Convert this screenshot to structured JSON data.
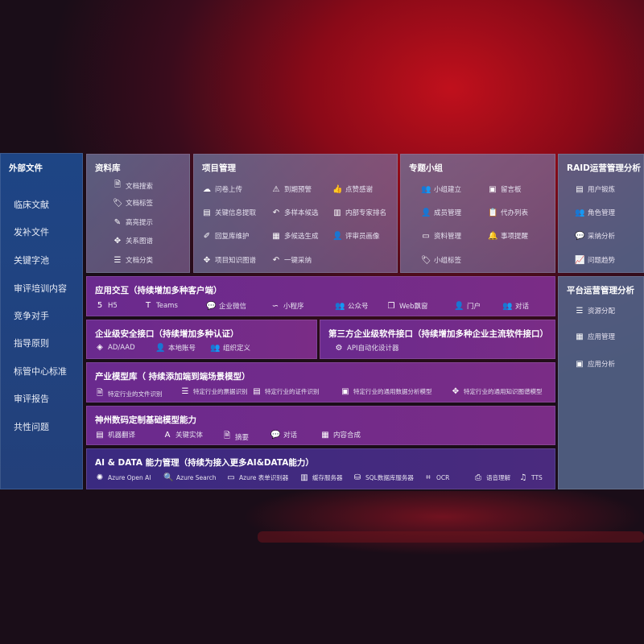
{
  "sidebar": {
    "title": "外部文件",
    "items": [
      "临床文献",
      "发补文件",
      "关键字池",
      "审评培训内容",
      "竞争对手",
      "指导原则",
      "标管中心标准",
      "审评报告",
      "共性问题"
    ]
  },
  "library": {
    "title": "资料库",
    "items": [
      {
        "icon": "document-search-icon",
        "glyph": "🗎",
        "label": "文档搜索"
      },
      {
        "icon": "tag-icon",
        "glyph": "🏷",
        "label": "文档标签"
      },
      {
        "icon": "pen-icon",
        "glyph": "✎",
        "label": "高亮提示"
      },
      {
        "icon": "graph-icon",
        "glyph": "✥",
        "label": "关系图谱"
      },
      {
        "icon": "document-classify-icon",
        "glyph": "☰",
        "label": "文档分类"
      }
    ]
  },
  "project": {
    "title": "项目管理",
    "items": [
      {
        "icon": "cloud-upload-icon",
        "glyph": "☁",
        "label": "问卷上传"
      },
      {
        "icon": "alarm-icon",
        "glyph": "⚠",
        "label": "到期预警"
      },
      {
        "icon": "thumbs-up-icon",
        "glyph": "👍",
        "label": "点赞感谢"
      },
      {
        "icon": "card-icon",
        "glyph": "▤",
        "label": "关键信息提取"
      },
      {
        "icon": "reply-icon",
        "glyph": "↶",
        "label": "多样本候选"
      },
      {
        "icon": "ranking-icon",
        "glyph": "▥",
        "label": "内部专家排名"
      },
      {
        "icon": "edit-icon",
        "glyph": "✐",
        "label": "回复库维护"
      },
      {
        "icon": "puzzle-icon",
        "glyph": "▦",
        "label": "多候选生成"
      },
      {
        "icon": "user-icon",
        "glyph": "👤",
        "label": "评审员画像"
      },
      {
        "icon": "knowledge-graph-icon",
        "glyph": "✥",
        "label": "项目知识图谱"
      },
      {
        "icon": "reply-icon",
        "glyph": "↶",
        "label": "一键采纳"
      }
    ]
  },
  "group": {
    "title": "专题小组",
    "items": [
      {
        "icon": "group-icon",
        "glyph": "👥",
        "label": "小组建立"
      },
      {
        "icon": "bbs-icon",
        "glyph": "▣",
        "label": "留言板"
      },
      {
        "icon": "add-user-icon",
        "glyph": "👤",
        "label": "成员管理"
      },
      {
        "icon": "clipboard-icon",
        "glyph": "📋",
        "label": "代办列表"
      },
      {
        "icon": "folder-icon",
        "glyph": "▭",
        "label": "资料管理"
      },
      {
        "icon": "bell-icon",
        "glyph": "🔔",
        "label": "事项提醒"
      },
      {
        "icon": "tag-icon",
        "glyph": "🏷",
        "label": "小组标签"
      }
    ]
  },
  "raid": {
    "title": "RAID运营管理分析",
    "items": [
      {
        "icon": "id-card-icon",
        "glyph": "▤",
        "label": "用户锻炼"
      },
      {
        "icon": "users-icon",
        "glyph": "👥",
        "label": "角色管理"
      },
      {
        "icon": "qa-icon",
        "glyph": "💬",
        "label": "采纳分析"
      },
      {
        "icon": "trend-icon",
        "glyph": "📈",
        "label": "问题趋势"
      }
    ]
  },
  "platform": {
    "title": "平台运营管理分析",
    "items": [
      {
        "icon": "list-icon",
        "glyph": "☰",
        "label": "资源分配"
      },
      {
        "icon": "apps-icon",
        "glyph": "▦",
        "label": "应用管理"
      },
      {
        "icon": "analysis-icon",
        "glyph": "▣",
        "label": "应用分析"
      }
    ]
  },
  "interaction": {
    "title": "应用交互（持续增加多种客户端）",
    "items": [
      {
        "icon": "html5-icon",
        "glyph": "5",
        "label": "H5"
      },
      {
        "icon": "teams-icon",
        "glyph": "T",
        "label": "Teams"
      },
      {
        "icon": "wecom-icon",
        "glyph": "💬",
        "label": "企业微信"
      },
      {
        "icon": "miniprogram-icon",
        "glyph": "∽",
        "label": "小程序"
      },
      {
        "icon": "official-account-icon",
        "glyph": "👥",
        "label": "公众号"
      },
      {
        "icon": "window-icon",
        "glyph": "❐",
        "label": "Web飘窗"
      },
      {
        "icon": "portal-icon",
        "glyph": "👤",
        "label": "门户"
      },
      {
        "icon": "chat-icon",
        "glyph": "👥",
        "label": "对话"
      }
    ]
  },
  "security": {
    "title": "企业级安全接口（持续增加多种认证）",
    "items": [
      {
        "icon": "ad-icon",
        "glyph": "◈",
        "label": "AD/AAD"
      },
      {
        "icon": "local-account-icon",
        "glyph": "👤",
        "label": "本地账号"
      },
      {
        "icon": "org-icon",
        "glyph": "👥",
        "label": "组织定义"
      }
    ]
  },
  "thirdparty": {
    "title": "第三方企业级软件接口（持续增加多种企业主流软件接口）",
    "items": [
      {
        "icon": "gear-icon",
        "glyph": "⚙",
        "label": "API自动化设计器"
      }
    ]
  },
  "industry": {
    "title": "产业模型库（ 持续添加端到端场景模型）",
    "items": [
      {
        "icon": "file-icon",
        "glyph": "🗎",
        "label": "特定行业的文件识别"
      },
      {
        "icon": "receipt-icon",
        "glyph": "☰",
        "label": "特定行业的票据识别"
      },
      {
        "icon": "id-card-icon",
        "glyph": "▤",
        "label": "特定行业的证件识别"
      },
      {
        "icon": "chart-icon",
        "glyph": "▣",
        "label": "特定行业的通用数据分析模型"
      },
      {
        "icon": "knowledge-graph-icon",
        "glyph": "✥",
        "label": "特定行业的通用知识图谱模型"
      }
    ]
  },
  "base": {
    "title": "神州数码定制基础模型能力",
    "items": [
      {
        "icon": "translate-icon",
        "glyph": "▤",
        "label": "机器翻译"
      },
      {
        "icon": "entity-icon",
        "glyph": "A",
        "label": "关键实体"
      },
      {
        "icon": "summary-icon",
        "glyph": "🗎",
        "label": "摘要"
      },
      {
        "icon": "chat-icon",
        "glyph": "💬",
        "label": "对话"
      },
      {
        "icon": "compose-icon",
        "glyph": "▦",
        "label": "内容合成"
      }
    ]
  },
  "aidata": {
    "title": "AI & DATA 能力管理（持续为接入更多AI&DATA能力）",
    "items": [
      {
        "icon": "openai-icon",
        "glyph": "✺",
        "label": "Azure Open AI"
      },
      {
        "icon": "search-icon",
        "glyph": "🔍",
        "label": "Azure Search"
      },
      {
        "icon": "form-icon",
        "glyph": "▭",
        "label": "Azure 表单识别器"
      },
      {
        "icon": "cache-icon",
        "glyph": "▥",
        "label": "缓存服务器"
      },
      {
        "icon": "database-icon",
        "glyph": "⛁",
        "label": "SQL数据库服务器"
      },
      {
        "icon": "ocr-icon",
        "glyph": "⌗",
        "label": "OCR"
      },
      {
        "icon": "speech-icon",
        "glyph": "⎙",
        "label": "语音理解"
      },
      {
        "icon": "tts-icon",
        "glyph": "♫",
        "label": "TTS"
      }
    ]
  }
}
